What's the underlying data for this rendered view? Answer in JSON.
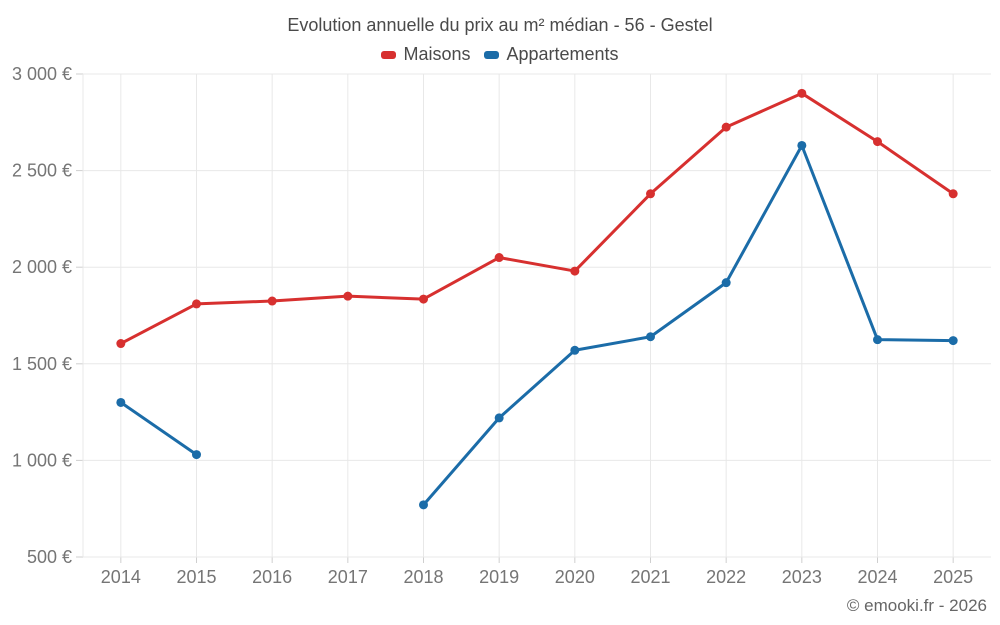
{
  "header": {
    "title": "Evolution annuelle du prix au m² médian - 56 - Gestel"
  },
  "legend": {
    "items": [
      {
        "label": "Maisons",
        "color": "#d7302f"
      },
      {
        "label": "Appartements",
        "color": "#1b6ca8"
      }
    ]
  },
  "chart_data": {
    "type": "line",
    "title": "Evolution annuelle du prix au m² médian - 56 - Gestel",
    "x": [
      "2014",
      "2015",
      "2016",
      "2017",
      "2018",
      "2019",
      "2020",
      "2021",
      "2022",
      "2023",
      "2024",
      "2025"
    ],
    "series": [
      {
        "name": "Maisons",
        "color": "#d7302f",
        "values": [
          1605,
          1810,
          1825,
          1850,
          1835,
          2050,
          1980,
          2380,
          2725,
          2900,
          2650,
          2380
        ]
      },
      {
        "name": "Appartements",
        "color": "#1b6ca8",
        "values": [
          1300,
          1030,
          null,
          null,
          770,
          1220,
          1570,
          1640,
          1920,
          2630,
          1625,
          1620
        ]
      }
    ],
    "xlabel": "",
    "ylabel": "",
    "ylim": [
      500,
      3000
    ],
    "yticks": [
      {
        "value": 500,
        "label": "500 €"
      },
      {
        "value": 1000,
        "label": "1 000 €"
      },
      {
        "value": 1500,
        "label": "1 500 €"
      },
      {
        "value": 2000,
        "label": "2 000 €"
      },
      {
        "value": 2500,
        "label": "2 500 €"
      },
      {
        "value": 3000,
        "label": "3 000 €"
      }
    ],
    "grid": true,
    "legend_position": "top",
    "grid_color": "#e8e8e8",
    "tick_color": "#cfcfcf",
    "axis_label_color": "#757575"
  },
  "footer": {
    "credit": "© emooki.fr - 2026"
  }
}
